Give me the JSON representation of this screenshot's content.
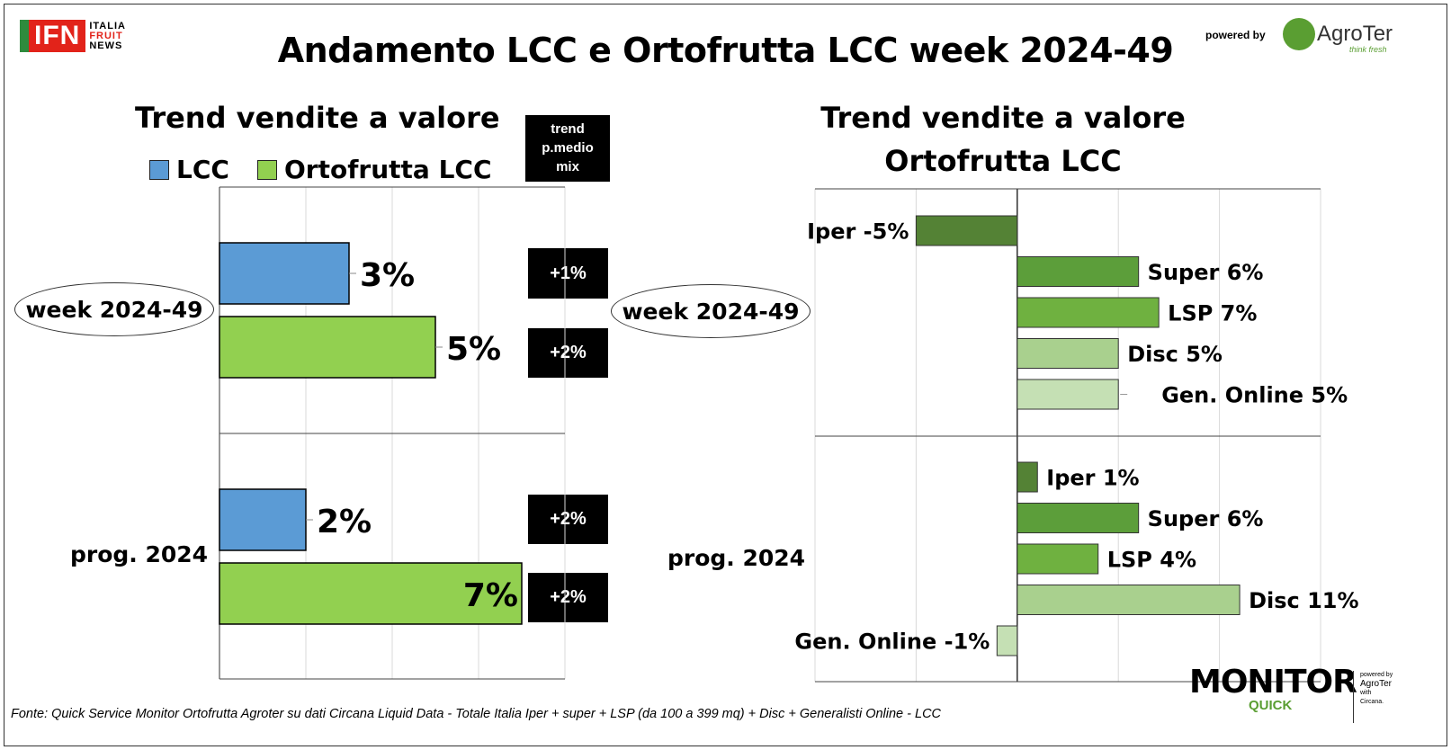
{
  "header": {
    "title": "Andamento LCC e Ortofrutta LCC week 2024-49",
    "ifn_logo": "IFN",
    "ifn_logo_sub": [
      "ITALIA",
      "FRUIT",
      "NEWS"
    ],
    "powered_by": "powered by",
    "agroter_logo": "AgroTer",
    "agroter_tagline": "think fresh"
  },
  "left_panel": {
    "subtitle": "Trend vendite a valore",
    "legend": [
      "LCC",
      "Ortofrutta LCC"
    ],
    "trend_header": [
      "trend",
      "p.medio",
      "mix"
    ],
    "trend_values": [
      "+1%",
      "+2%",
      "+2%",
      "+2%"
    ],
    "row_labels": [
      "week 2024-49",
      "prog. 2024"
    ]
  },
  "right_panel": {
    "subtitle_line1": "Trend vendite a valore",
    "subtitle_line2": "Ortofrutta LCC",
    "row_labels": [
      "week 2024-49",
      "prog. 2024"
    ]
  },
  "colors": {
    "lcc": "#5b9bd5",
    "ortofrutta": "#92d050",
    "iper": "#548235",
    "super": "#5c9e3a",
    "lsp": "#6fb140",
    "disc": "#a9d08e",
    "online": "#c5e0b4"
  },
  "chart_data": [
    {
      "type": "bar",
      "orientation": "horizontal",
      "title": "Trend vendite a valore",
      "categories": [
        "week 2024-49",
        "prog. 2024"
      ],
      "series": [
        {
          "name": "LCC",
          "values": [
            3,
            2
          ],
          "labels": [
            "3%",
            "2%"
          ]
        },
        {
          "name": "Ortofrutta LCC",
          "values": [
            5,
            7
          ],
          "labels": [
            "5%",
            "7%"
          ]
        }
      ],
      "xlim": [
        0,
        8
      ],
      "grid": true,
      "legend": "top"
    },
    {
      "type": "bar",
      "orientation": "horizontal",
      "title": "Trend vendite a valore Ortofrutta LCC",
      "groups": [
        {
          "name": "week 2024-49",
          "bars": [
            {
              "label": "Iper -5%",
              "value": -5,
              "color_key": "iper"
            },
            {
              "label": "Super 6%",
              "value": 6,
              "color_key": "super"
            },
            {
              "label": "LSP 7%",
              "value": 7,
              "color_key": "lsp"
            },
            {
              "label": "Disc 5%",
              "value": 5,
              "color_key": "disc"
            },
            {
              "label": "Gen. Online 5%",
              "value": 5,
              "color_key": "online"
            }
          ]
        },
        {
          "name": "prog. 2024",
          "bars": [
            {
              "label": "Iper 1%",
              "value": 1,
              "color_key": "iper"
            },
            {
              "label": "Super 6%",
              "value": 6,
              "color_key": "super"
            },
            {
              "label": "LSP 4%",
              "value": 4,
              "color_key": "lsp"
            },
            {
              "label": "Disc 11%",
              "value": 11,
              "color_key": "disc"
            },
            {
              "label": "Gen. Online -1%",
              "value": -1,
              "color_key": "online"
            }
          ]
        }
      ],
      "xlim": [
        -10,
        15
      ],
      "grid": true
    }
  ],
  "footer": {
    "source": "Fonte: Quick Service Monitor Ortofrutta Agroter su dati Circana Liquid Data - Totale Italia Iper + super + LSP (da 100 a 399 mq) + Disc + Generalisti Online - LCC",
    "monitor_logo": "MONITOR",
    "monitor_sub": "QUICK",
    "monitor_powered": [
      "powered by",
      "AgroTer",
      "with",
      "Circana."
    ]
  }
}
